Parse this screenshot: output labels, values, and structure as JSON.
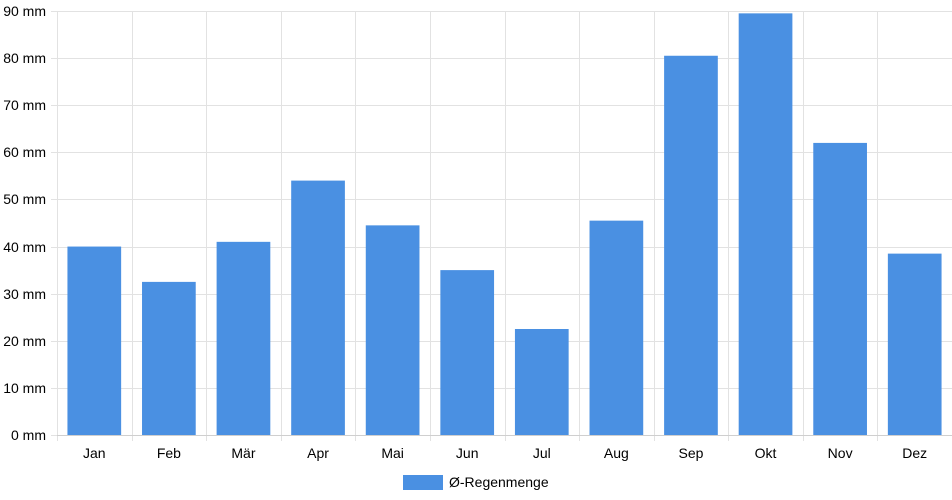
{
  "chart_data": {
    "type": "bar",
    "title": "",
    "xlabel": "",
    "ylabel": "",
    "categories": [
      "Jan",
      "Feb",
      "Mär",
      "Apr",
      "Mai",
      "Jun",
      "Jul",
      "Aug",
      "Sep",
      "Okt",
      "Nov",
      "Dez"
    ],
    "series": [
      {
        "name": "Ø-Regenmenge",
        "values": [
          40,
          32.5,
          41,
          54,
          44.5,
          35,
          22.5,
          45.5,
          80.5,
          89.5,
          62,
          38.5
        ],
        "color": "#4a90e2"
      }
    ],
    "ylim": [
      0,
      90
    ],
    "yticks": [
      0,
      10,
      20,
      30,
      40,
      50,
      60,
      70,
      80,
      90
    ],
    "yunit": "mm",
    "grid": true,
    "legend_position": "bottom-center"
  }
}
